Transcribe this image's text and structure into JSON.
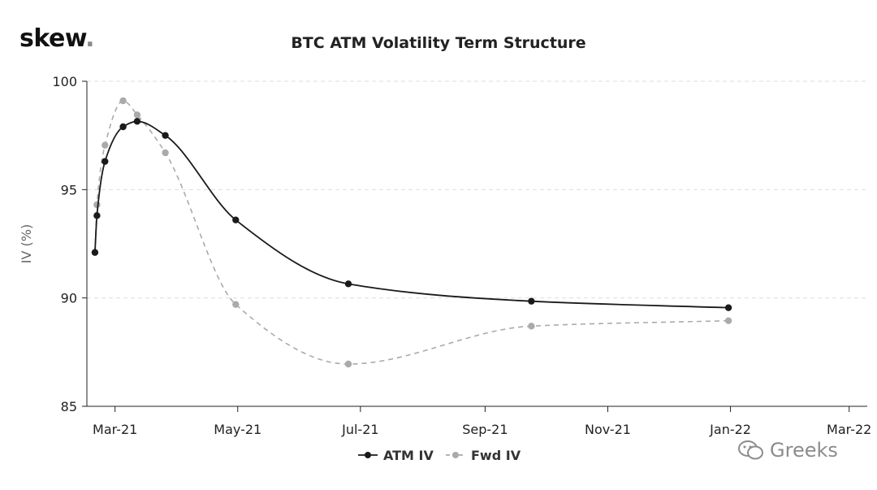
{
  "brand": {
    "logo_text": "skew",
    "logo_dot": "."
  },
  "watermark": {
    "text": "Greeks",
    "icon": "wechat-icon"
  },
  "colors": {
    "atm": "#1a1a1a",
    "fwd": "#aaaaaa",
    "grid": "#dddddd",
    "axis": "#222222",
    "text": "#222222"
  },
  "chart_data": {
    "type": "line",
    "title": "BTC ATM Volatility Term Structure",
    "xlabel": "",
    "ylabel": "IV (%)",
    "ylim": [
      85,
      100
    ],
    "yticks": [
      85,
      90,
      95,
      100
    ],
    "xlim": [
      "2021-02-15",
      "2022-03-10"
    ],
    "xticks": [
      {
        "date": "2021-03-01",
        "label": "Mar-21"
      },
      {
        "date": "2021-05-01",
        "label": "May-21"
      },
      {
        "date": "2021-07-01",
        "label": "Jul-21"
      },
      {
        "date": "2021-09-01",
        "label": "Sep-21"
      },
      {
        "date": "2021-11-01",
        "label": "Nov-21"
      },
      {
        "date": "2022-01-01",
        "label": "Jan-22"
      },
      {
        "date": "2022-03-01",
        "label": "Mar-22"
      }
    ],
    "grid": "horizontal",
    "legend_position": "bottom",
    "series": [
      {
        "name": "ATM IV",
        "line": "solid",
        "points": [
          {
            "x": "2021-02-19",
            "y": 92.1
          },
          {
            "x": "2021-02-20",
            "y": 93.8
          },
          {
            "x": "2021-02-24",
            "y": 96.3
          },
          {
            "x": "2021-03-05",
            "y": 97.9
          },
          {
            "x": "2021-03-12",
            "y": 98.15
          },
          {
            "x": "2021-03-26",
            "y": 97.5
          },
          {
            "x": "2021-04-30",
            "y": 93.6
          },
          {
            "x": "2021-06-25",
            "y": 90.65
          },
          {
            "x": "2021-09-24",
            "y": 89.85
          },
          {
            "x": "2021-12-31",
            "y": 89.55
          }
        ]
      },
      {
        "name": "Fwd IV",
        "line": "dashed",
        "points": [
          {
            "x": "2021-02-19",
            "y": 92.1
          },
          {
            "x": "2021-02-20",
            "y": 94.3
          },
          {
            "x": "2021-02-24",
            "y": 97.05
          },
          {
            "x": "2021-03-05",
            "y": 99.1
          },
          {
            "x": "2021-03-12",
            "y": 98.45
          },
          {
            "x": "2021-03-26",
            "y": 96.7
          },
          {
            "x": "2021-04-30",
            "y": 89.7
          },
          {
            "x": "2021-06-25",
            "y": 86.95
          },
          {
            "x": "2021-09-24",
            "y": 88.7
          },
          {
            "x": "2021-12-31",
            "y": 88.95
          }
        ]
      }
    ]
  }
}
